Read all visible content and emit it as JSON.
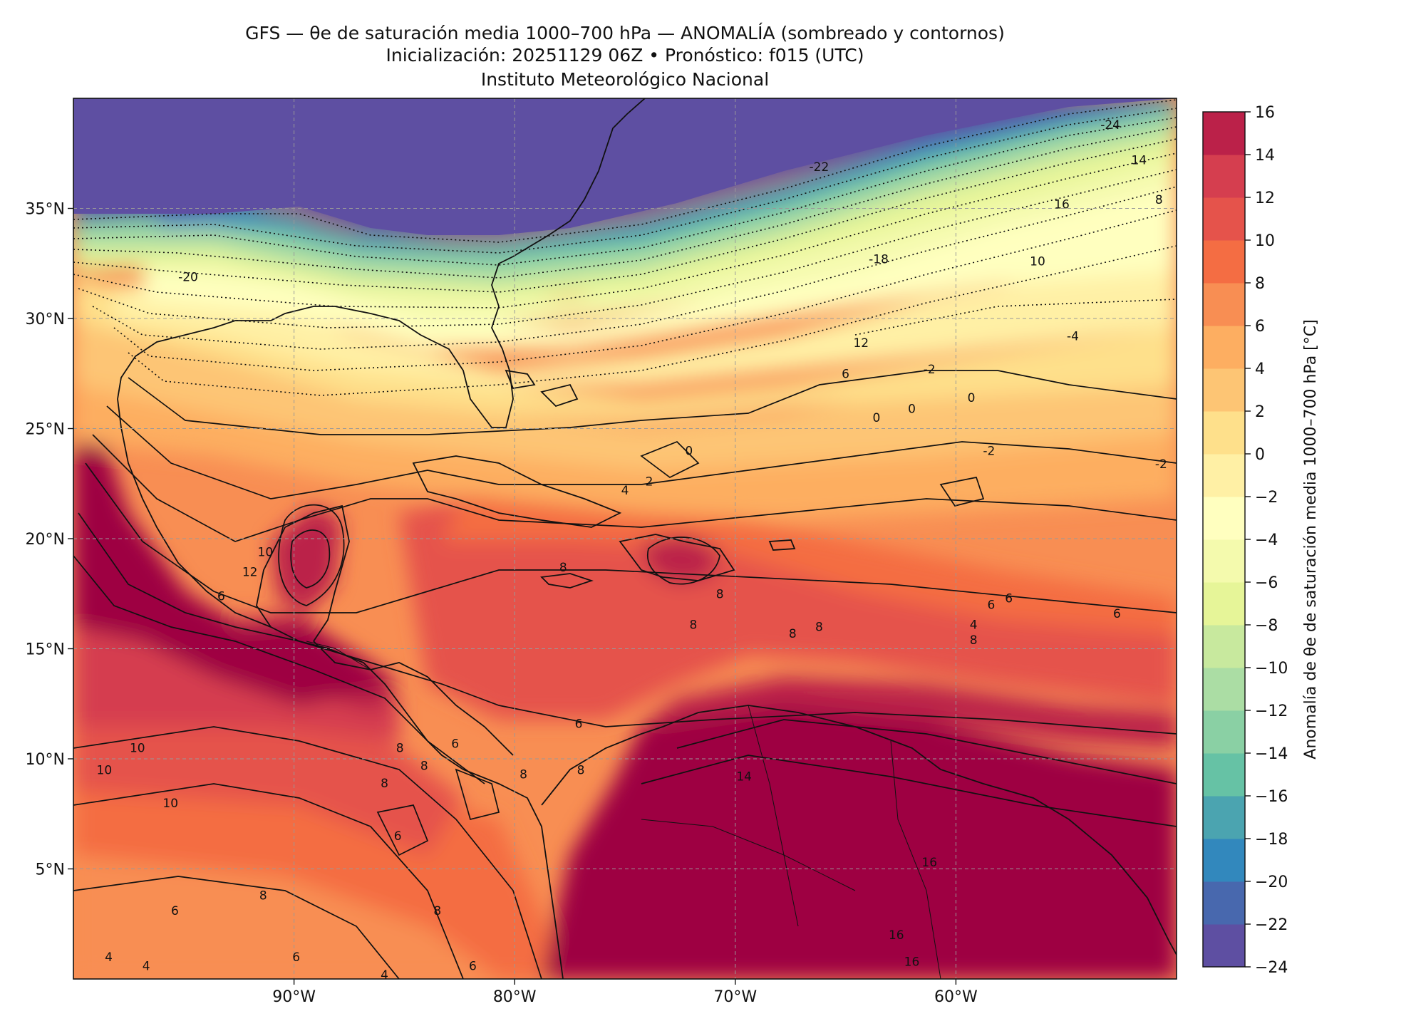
{
  "title": {
    "line1": "GFS — θe de saturación media 1000–700 hPa — ANOMALÍA (sombreado y contornos)",
    "line2": "Inicialización: 20251129 06Z   •   Pronóstico: f015 (UTC)",
    "line3": "Instituto Meteorológico Nacional"
  },
  "map": {
    "lon_range": [
      -100,
      -50
    ],
    "lat_range": [
      0,
      40
    ],
    "x_ticks": [
      {
        "value": -90,
        "label": "90°W"
      },
      {
        "value": -80,
        "label": "80°W"
      },
      {
        "value": -70,
        "label": "70°W"
      },
      {
        "value": -60,
        "label": "60°W"
      }
    ],
    "y_ticks": [
      {
        "value": 35,
        "label": "35°N"
      },
      {
        "value": 30,
        "label": "30°N"
      },
      {
        "value": 25,
        "label": "25°N"
      },
      {
        "value": 20,
        "label": "20°N"
      },
      {
        "value": 15,
        "label": "15°N"
      },
      {
        "value": 10,
        "label": "10°N"
      },
      {
        "value": 5,
        "label": "5°N"
      }
    ],
    "gridlines": true,
    "contour_labels": [
      {
        "lon": -94.8,
        "lat": 31.9,
        "text": "-20"
      },
      {
        "lon": -63.5,
        "lat": 32.7,
        "text": "-18"
      },
      {
        "lon": -66.2,
        "lat": 36.9,
        "text": "-22"
      },
      {
        "lon": -53.0,
        "lat": 38.8,
        "text": "-24"
      },
      {
        "lon": -64.3,
        "lat": 28.9,
        "text": "12"
      },
      {
        "lon": -65.0,
        "lat": 27.5,
        "text": "6"
      },
      {
        "lon": -55.2,
        "lat": 35.2,
        "text": "16"
      },
      {
        "lon": -51.7,
        "lat": 37.2,
        "text": "14"
      },
      {
        "lon": -50.8,
        "lat": 35.4,
        "text": "8"
      },
      {
        "lon": -56.3,
        "lat": 32.6,
        "text": "10"
      },
      {
        "lon": -54.7,
        "lat": 29.2,
        "text": "-4"
      },
      {
        "lon": -58.5,
        "lat": 24.0,
        "text": "-2"
      },
      {
        "lon": -59.3,
        "lat": 26.4,
        "text": "0"
      },
      {
        "lon": -63.6,
        "lat": 25.5,
        "text": "0"
      },
      {
        "lon": -62.0,
        "lat": 25.9,
        "text": "0"
      },
      {
        "lon": -61.2,
        "lat": 27.7,
        "text": "-2"
      },
      {
        "lon": -72.1,
        "lat": 24.0,
        "text": "0"
      },
      {
        "lon": -73.9,
        "lat": 22.6,
        "text": "2"
      },
      {
        "lon": -75.0,
        "lat": 22.2,
        "text": "4"
      },
      {
        "lon": -77.8,
        "lat": 18.7,
        "text": "8"
      },
      {
        "lon": -92.0,
        "lat": 18.5,
        "text": "12"
      },
      {
        "lon": -91.3,
        "lat": 19.4,
        "text": "10"
      },
      {
        "lon": -93.3,
        "lat": 17.4,
        "text": "6"
      },
      {
        "lon": -71.9,
        "lat": 16.1,
        "text": "8"
      },
      {
        "lon": -70.7,
        "lat": 17.5,
        "text": "8"
      },
      {
        "lon": -52.7,
        "lat": 16.6,
        "text": "6"
      },
      {
        "lon": -57.6,
        "lat": 17.3,
        "text": "6"
      },
      {
        "lon": -58.4,
        "lat": 17.0,
        "text": "6"
      },
      {
        "lon": -59.2,
        "lat": 16.1,
        "text": "4"
      },
      {
        "lon": -59.2,
        "lat": 15.4,
        "text": "8"
      },
      {
        "lon": -67.4,
        "lat": 15.7,
        "text": "8"
      },
      {
        "lon": -66.2,
        "lat": 16.0,
        "text": "8"
      },
      {
        "lon": -77.1,
        "lat": 11.6,
        "text": "6"
      },
      {
        "lon": -97.1,
        "lat": 10.5,
        "text": "10"
      },
      {
        "lon": -98.6,
        "lat": 9.5,
        "text": "10"
      },
      {
        "lon": -95.6,
        "lat": 8.0,
        "text": "10"
      },
      {
        "lon": -77.0,
        "lat": 9.5,
        "text": "8"
      },
      {
        "lon": -79.6,
        "lat": 9.3,
        "text": "8"
      },
      {
        "lon": -82.7,
        "lat": 10.7,
        "text": "6"
      },
      {
        "lon": -85.9,
        "lat": 8.9,
        "text": "8"
      },
      {
        "lon": -85.2,
        "lat": 10.5,
        "text": "8"
      },
      {
        "lon": -84.1,
        "lat": 9.7,
        "text": "8"
      },
      {
        "lon": -85.3,
        "lat": 6.5,
        "text": "6"
      },
      {
        "lon": -69.6,
        "lat": 9.2,
        "text": "14"
      },
      {
        "lon": -61.2,
        "lat": 5.3,
        "text": "16"
      },
      {
        "lon": -62.7,
        "lat": 2.0,
        "text": "16"
      },
      {
        "lon": -62.0,
        "lat": 0.8,
        "text": "16"
      },
      {
        "lon": -95.4,
        "lat": 3.1,
        "text": "6"
      },
      {
        "lon": -91.4,
        "lat": 3.8,
        "text": "8"
      },
      {
        "lon": -83.5,
        "lat": 3.1,
        "text": "8"
      },
      {
        "lon": -89.9,
        "lat": 1.0,
        "text": "6"
      },
      {
        "lon": -98.4,
        "lat": 1.0,
        "text": "4"
      },
      {
        "lon": -96.7,
        "lat": 0.6,
        "text": "4"
      },
      {
        "lon": -85.9,
        "lat": 0.2,
        "text": "4"
      },
      {
        "lon": -81.9,
        "lat": 0.6,
        "text": "6"
      },
      {
        "lon": -50.7,
        "lat": 23.4,
        "text": "-2"
      }
    ]
  },
  "colorbar": {
    "label": "Anomalía de θe de saturación media 1000–700 hPa [°C]",
    "levels": [
      -24,
      -22,
      -20,
      -18,
      -16,
      -14,
      -12,
      -10,
      -8,
      -6,
      -4,
      -2,
      0,
      2,
      4,
      6,
      8,
      10,
      12,
      14,
      16
    ],
    "tick_labels": [
      "−24",
      "−22",
      "−20",
      "−18",
      "−16",
      "−14",
      "−12",
      "−10",
      "−8",
      "−6",
      "−4",
      "−2",
      "0",
      "2",
      "4",
      "6",
      "8",
      "10",
      "12",
      "14",
      "16"
    ],
    "colors": [
      "#5e4fa2",
      "#4868ae",
      "#3288bd",
      "#4ba4b0",
      "#66c2a5",
      "#8ad0a4",
      "#abdda4",
      "#c8e99e",
      "#e6f598",
      "#f4faad",
      "#ffffbf",
      "#fff0a5",
      "#fee08b",
      "#fdc574",
      "#fdae61",
      "#f88e53",
      "#f46d43",
      "#e5534b",
      "#d53e4f",
      "#bb2149",
      "#9e0142"
    ]
  }
}
